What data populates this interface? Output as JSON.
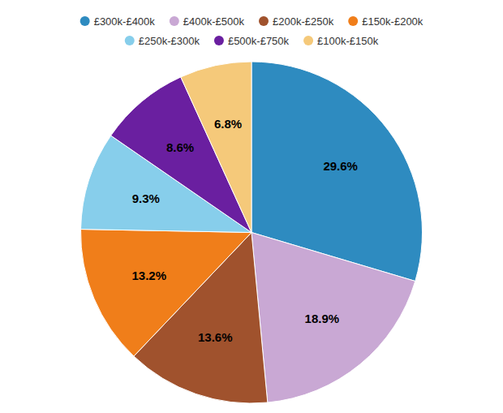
{
  "chart_data": {
    "type": "pie",
    "categories": [
      "£300k-£400k",
      "£400k-£500k",
      "£200k-£250k",
      "£150k-£200k",
      "£250k-£300k",
      "£500k-£750k",
      "£100k-£150k"
    ],
    "values": [
      29.6,
      18.9,
      13.6,
      13.2,
      9.3,
      8.6,
      6.8
    ],
    "value_labels": [
      "29.6%",
      "18.9%",
      "13.6%",
      "13.2%",
      "9.3%",
      "8.6%",
      "6.8%"
    ],
    "colors": [
      "#2e8bc0",
      "#c9a8d4",
      "#a0522d",
      "#f07e1a",
      "#87ceeb",
      "#6a1fa0",
      "#f5c97a"
    ],
    "data_labels": true,
    "legend": "top"
  }
}
